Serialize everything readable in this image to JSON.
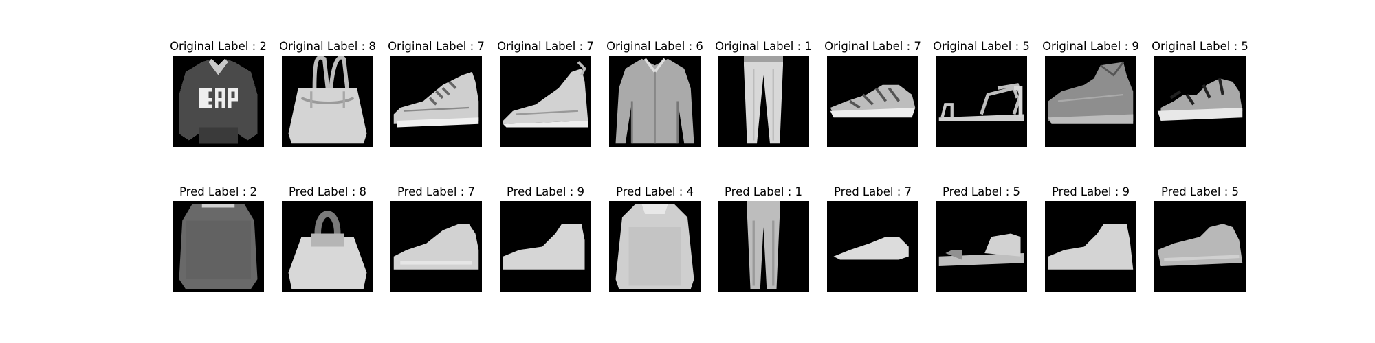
{
  "figure": {
    "rows": [
      {
        "name": "original",
        "items": [
          {
            "label": "Original Label : 2",
            "icon": "pullover-gap-icon"
          },
          {
            "label": "Original Label : 8",
            "icon": "bag-icon"
          },
          {
            "label": "Original Label : 7",
            "icon": "sneaker-icon"
          },
          {
            "label": "Original Label : 7",
            "icon": "sneaker-icon"
          },
          {
            "label": "Original Label : 6",
            "icon": "shirt-icon"
          },
          {
            "label": "Original Label : 1",
            "icon": "trouser-icon"
          },
          {
            "label": "Original Label : 7",
            "icon": "sneaker-icon"
          },
          {
            "label": "Original Label : 5",
            "icon": "sandal-icon"
          },
          {
            "label": "Original Label : 9",
            "icon": "ankle-boot-icon"
          },
          {
            "label": "Original Label : 5",
            "icon": "sandal-icon"
          }
        ]
      },
      {
        "name": "pred",
        "items": [
          {
            "label": "Pred Label : 2",
            "icon": "pullover-blur-icon"
          },
          {
            "label": "Pred Label : 8",
            "icon": "bag-blur-icon"
          },
          {
            "label": "Pred Label : 7",
            "icon": "sneaker-blur-icon"
          },
          {
            "label": "Pred Label : 9",
            "icon": "ankle-boot-blur-icon"
          },
          {
            "label": "Pred Label : 4",
            "icon": "coat-blur-icon"
          },
          {
            "label": "Pred Label : 1",
            "icon": "trouser-blur-icon"
          },
          {
            "label": "Pred Label : 7",
            "icon": "sneaker-blur-icon"
          },
          {
            "label": "Pred Label : 5",
            "icon": "sandal-blur-icon"
          },
          {
            "label": "Pred Label : 9",
            "icon": "ankle-boot-blur-icon"
          },
          {
            "label": "Pred Label : 5",
            "icon": "sandal-blur-icon"
          }
        ]
      }
    ]
  }
}
